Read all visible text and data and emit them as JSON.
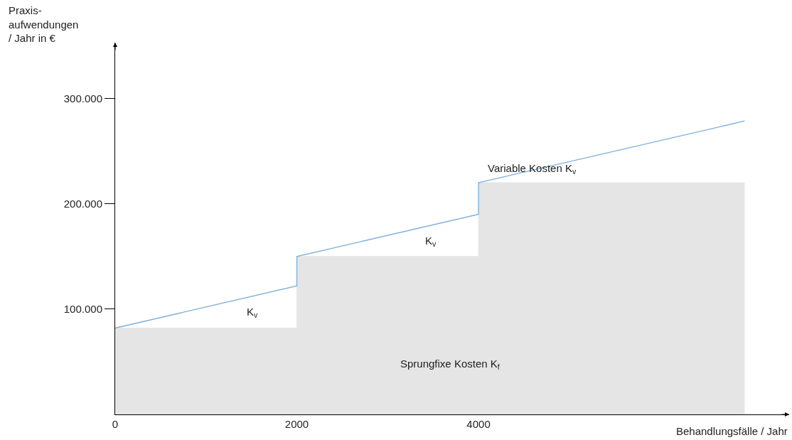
{
  "chart_data": {
    "type": "area",
    "xlabel": "Behandlungsfälle / Jahr",
    "ylabel": "Praxis-\naufwendungen\n/ Jahr in €",
    "series": [
      {
        "color": "#e5e5e5",
        "x": [
          0,
          2000,
          2000,
          4000,
          4000,
          6930
        ],
        "values": [
          82000,
          82000,
          150000,
          150000,
          220000,
          220000
        ]
      },
      {
        "type": "line",
        "color": "#7aaedc",
        "x": [
          0,
          2000,
          2000,
          4000,
          4000,
          6930
        ],
        "values": [
          82000,
          122000,
          150000,
          190000,
          220000,
          278600
        ]
      }
    ],
    "xlim": [
      0,
      7420
    ],
    "ylim": [
      0,
      353000
    ],
    "xticks": [
      0,
      2000,
      4000
    ],
    "yticks": [
      {
        "value": 100000,
        "label": "100.000"
      },
      {
        "value": 200000,
        "label": "200.000"
      },
      {
        "value": 300000,
        "label": "300.000"
      }
    ],
    "annotations": [
      "K$_{v}$",
      "K$_{v}$",
      "Variable Kosten K$_{v}$",
      "Sprungfixe Kosten K$_{f}$"
    ]
  }
}
